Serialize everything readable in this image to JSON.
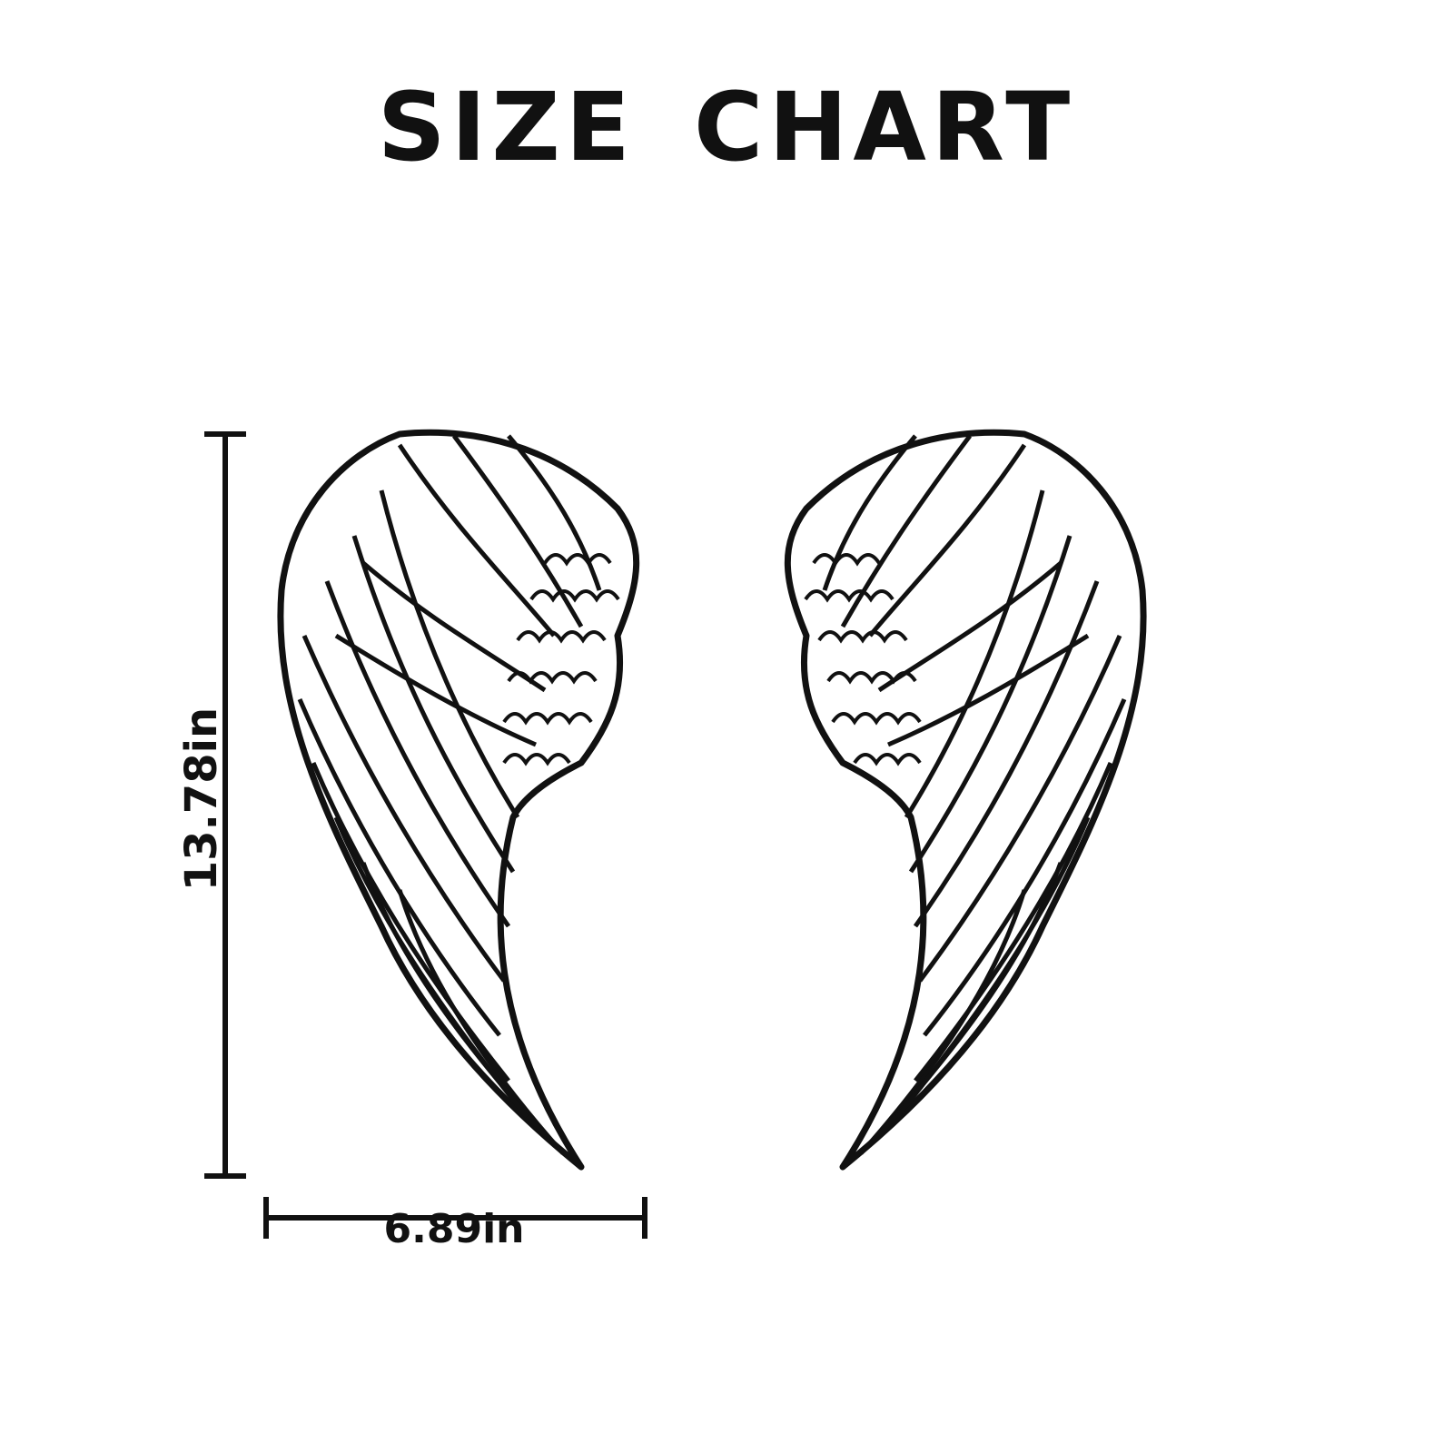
{
  "header": {
    "title": "SIZE CHART"
  },
  "dimensions": {
    "height_label": "13.78in",
    "width_label": "6.89in"
  },
  "illustration": {
    "subject": "angel-wings",
    "icon_left": "left-wing-icon",
    "icon_right": "right-wing-icon",
    "line_color": "#111111",
    "fill_color": "#ffffff"
  }
}
